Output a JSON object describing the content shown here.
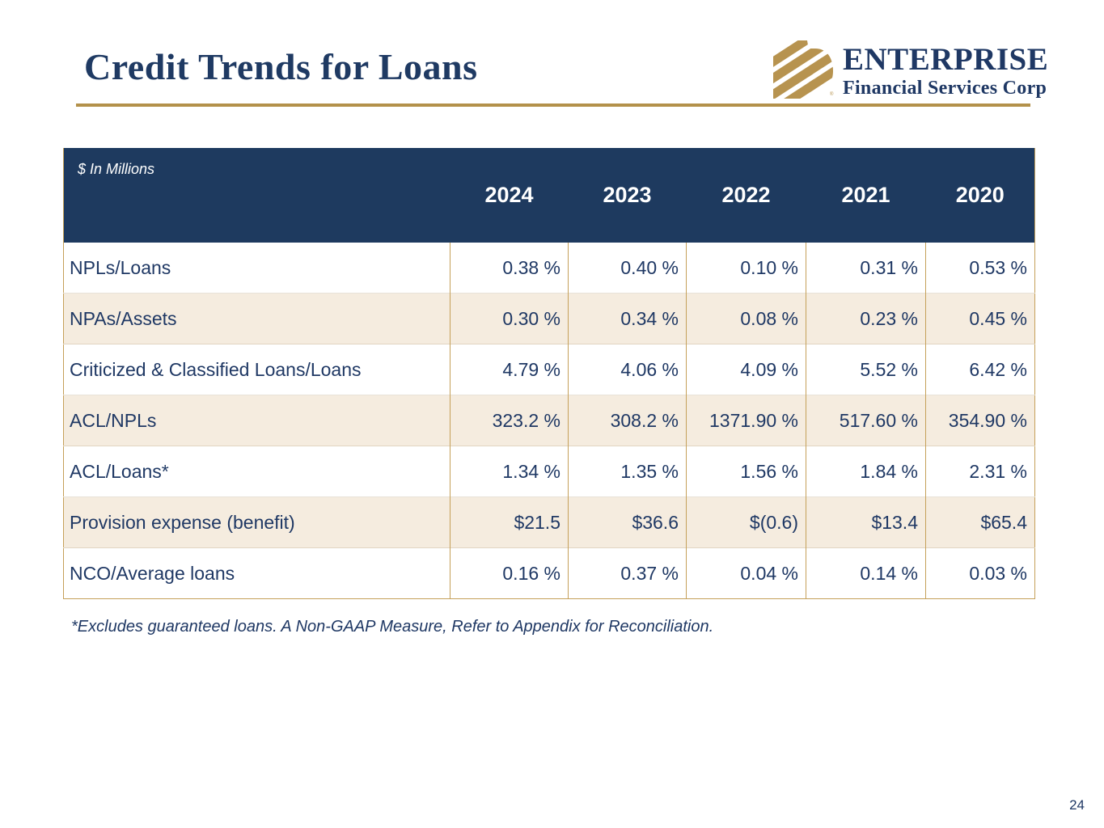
{
  "slide": {
    "title": "Credit Trends for Loans",
    "footnote": "*Excludes guaranteed loans. A Non-GAAP Measure, Refer to Appendix for Reconciliation.",
    "page_number": "24"
  },
  "logo": {
    "icon": "diagonal-stripes-icon",
    "name": "ENTERPRISE",
    "subtitle": "Financial Services Corp",
    "registered_mark": "®"
  },
  "colors": {
    "header_navy": "#1e3a5f",
    "text_navy": "#1f3864",
    "gold": "#c5a059",
    "gold_rule": "#b3914a",
    "row_cream": "#f5ecdf",
    "row_white": "#ffffff"
  },
  "table": {
    "units_label": "$ In Millions",
    "columns": [
      "2024",
      "2023",
      "2022",
      "2021",
      "2020"
    ],
    "rows": [
      {
        "label": "NPLs/Loans",
        "values": [
          "0.38 %",
          "0.40 %",
          "0.10 %",
          "0.31 %",
          "0.53 %"
        ]
      },
      {
        "label": "NPAs/Assets",
        "values": [
          "0.30 %",
          "0.34 %",
          "0.08 %",
          "0.23 %",
          "0.45 %"
        ]
      },
      {
        "label": "Criticized & Classified Loans/Loans",
        "values": [
          "4.79 %",
          "4.06 %",
          "4.09 %",
          "5.52 %",
          "6.42 %"
        ]
      },
      {
        "label": "ACL/NPLs",
        "values": [
          "323.2 %",
          "308.2 %",
          "1371.90 %",
          "517.60 %",
          "354.90 %"
        ]
      },
      {
        "label": "ACL/Loans*",
        "values": [
          "1.34 %",
          "1.35 %",
          "1.56 %",
          "1.84 %",
          "2.31 %"
        ]
      },
      {
        "label": "Provision expense (benefit)",
        "values": [
          "$21.5",
          "$36.6",
          "$(0.6)",
          "$13.4",
          "$65.4"
        ]
      },
      {
        "label": "NCO/Average loans",
        "values": [
          "0.16 %",
          "0.37 %",
          "0.04 %",
          "0.14 %",
          "0.03 %"
        ]
      }
    ]
  }
}
